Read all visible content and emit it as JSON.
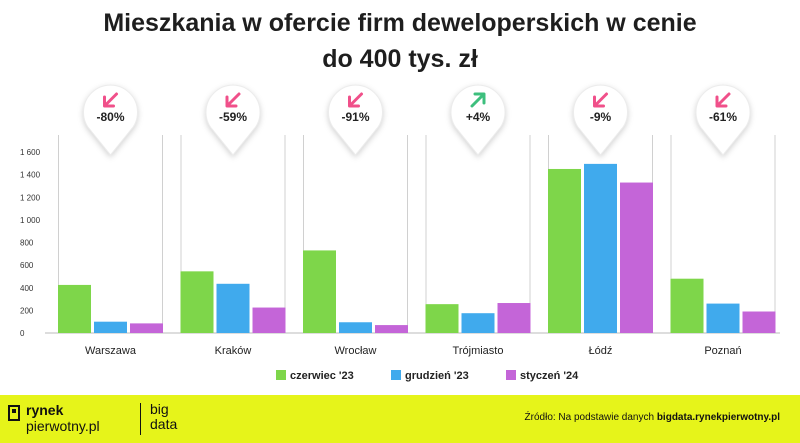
{
  "chart_data": {
    "type": "bar",
    "title": "Mieszkania w ofercie firm deweloperskich w cenie",
    "subtitle": "do 400 tys. zł",
    "categories": [
      "Warszawa",
      "Kraków",
      "Wrocław",
      "Trójmiasto",
      "Łódź",
      "Poznań"
    ],
    "series": [
      {
        "name": "czerwiec '23",
        "color": "#7ed64a",
        "values": [
          425,
          545,
          730,
          255,
          1450,
          480
        ]
      },
      {
        "name": "grudzień '23",
        "color": "#40aaed",
        "values": [
          100,
          435,
          95,
          175,
          1495,
          260
        ]
      },
      {
        "name": "styczeń '24",
        "color": "#c465d8",
        "values": [
          85,
          225,
          70,
          265,
          1330,
          190
        ]
      }
    ],
    "changes": [
      {
        "label": "-80%",
        "direction": "down",
        "color": "#f0508a"
      },
      {
        "label": "-59%",
        "direction": "down",
        "color": "#f0508a"
      },
      {
        "label": "-91%",
        "direction": "down",
        "color": "#f0508a"
      },
      {
        "label": "+4%",
        "direction": "up",
        "color": "#3dbf7d"
      },
      {
        "label": "-9%",
        "direction": "down",
        "color": "#f0508a"
      },
      {
        "label": "-61%",
        "direction": "down",
        "color": "#f0508a"
      }
    ],
    "yticks": [
      0,
      200,
      400,
      600,
      800,
      1000,
      1200,
      1400,
      1600
    ],
    "ytick_labels": [
      "0",
      "200",
      "400",
      "600",
      "800",
      "1 000",
      "1 200",
      "1 400",
      "1 600"
    ],
    "ylim": [
      0,
      1600
    ],
    "legend_position": "bottom",
    "grid": false
  },
  "footer": {
    "brand_line1": "rynek",
    "brand_line2": "pierwotny.pl",
    "brand2_line1": "big",
    "brand2_line2": "data",
    "source_prefix": "Źródło: Na podstawie danych ",
    "source_link": "bigdata.rynekpierwotny.pl"
  }
}
